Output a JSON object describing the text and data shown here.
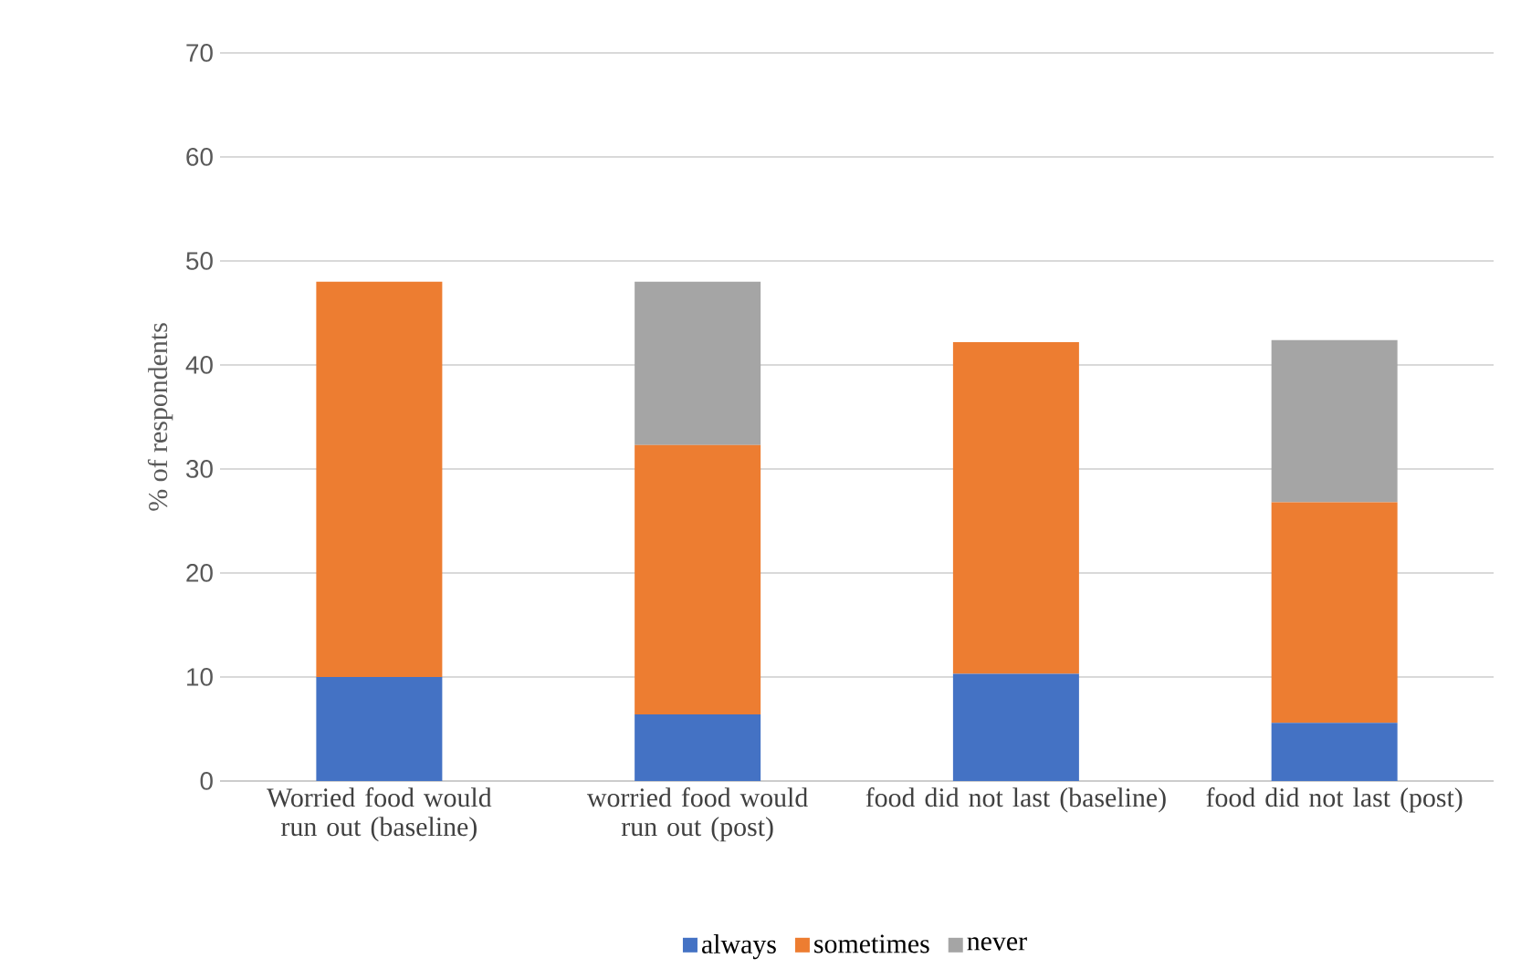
{
  "chart_data": {
    "type": "bar",
    "stacked": true,
    "ylabel": "% of respondents",
    "categories": [
      "Worried food would run out (baseline)",
      "worried food would run out (post)",
      "food did not last (baseline)",
      "food did not last (post)"
    ],
    "series": [
      {
        "name": "always",
        "color": "#4472c4",
        "values": [
          10.0,
          6.4,
          10.3,
          5.6
        ]
      },
      {
        "name": "sometimes",
        "color": "#ed7d31",
        "values": [
          38.0,
          25.9,
          31.9,
          21.2
        ]
      },
      {
        "name": "never",
        "color": "#a5a5a5",
        "values": [
          null,
          15.7,
          null,
          15.6
        ]
      }
    ],
    "ylim": [
      0,
      70
    ],
    "yticks": [
      0,
      10,
      20,
      30,
      40,
      50,
      60,
      70
    ],
    "grid": "y",
    "legend": "bottom"
  }
}
